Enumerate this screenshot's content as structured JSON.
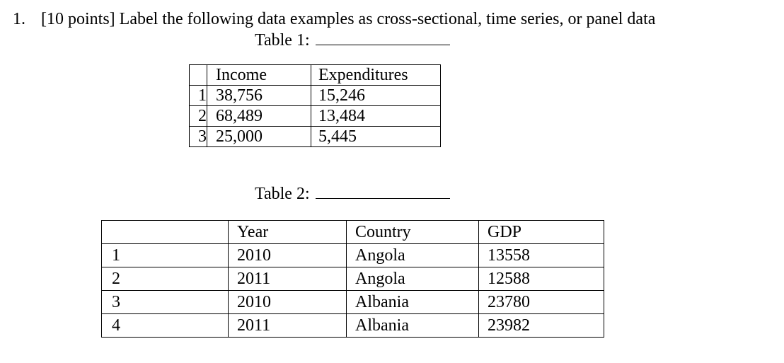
{
  "question": {
    "number": "1.",
    "text": "[10 points] Label the following data examples as cross-sectional, time series, or panel data"
  },
  "table1": {
    "label": "Table 1:",
    "headers": [
      "",
      "Income",
      "Expenditures"
    ],
    "rows": [
      [
        "1",
        "38,756",
        "15,246"
      ],
      [
        "2",
        "68,489",
        "13,484"
      ],
      [
        "3",
        "25,000",
        "5,445"
      ]
    ]
  },
  "table2": {
    "label": "Table 2:",
    "headers": [
      "",
      "Year",
      "Country",
      "GDP"
    ],
    "rows": [
      [
        "1",
        "2010",
        "Angola",
        "13558"
      ],
      [
        "2",
        "2011",
        "Angola",
        "12588"
      ],
      [
        "3",
        "2010",
        "Albania",
        "23780"
      ],
      [
        "4",
        "2011",
        "Albania",
        "23982"
      ]
    ]
  }
}
